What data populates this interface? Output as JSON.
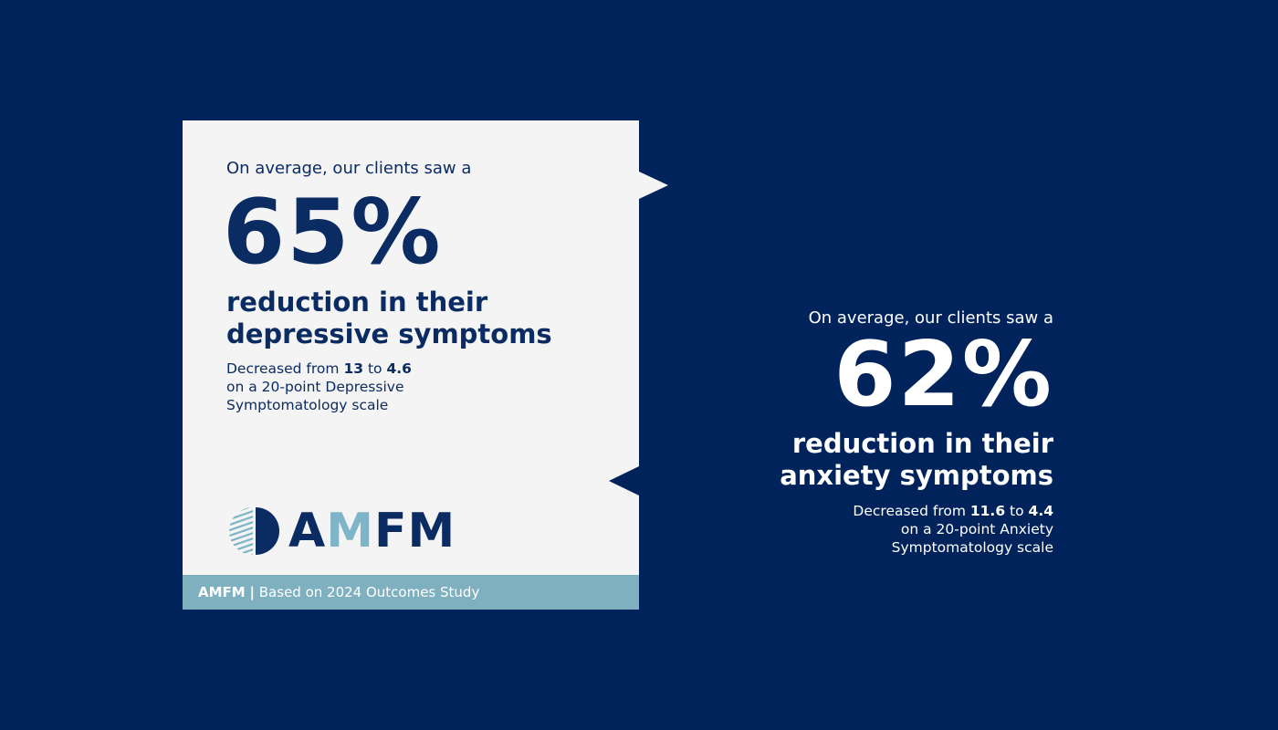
{
  "colors": {
    "background": "#00235c",
    "card": "#f4f4f4",
    "navy": "#0b2b63",
    "accent": "#7fb0c0"
  },
  "depression": {
    "intro": "On average, our clients saw a",
    "percent": "65%",
    "headline_1": "reduction in their",
    "headline_2": "depressive symptoms",
    "detail_prefix": "Decreased from ",
    "from": "13",
    "to_word": " to ",
    "to": "4.6",
    "detail_2": "on a 20-point Depressive",
    "detail_3": "Symptomatology scale"
  },
  "logo": {
    "text_a": "A",
    "text_m": "M",
    "text_fm": "FM"
  },
  "footer": {
    "brand": "AMFM",
    "separator": "|",
    "text": "Based on 2024 Outcomes Study"
  },
  "anxiety": {
    "intro": "On average, our clients saw a",
    "percent": "62%",
    "headline_1": "reduction in their",
    "headline_2": "anxiety symptoms",
    "detail_prefix": "Decreased from ",
    "from": "11.6",
    "to_word": " to ",
    "to": "4.4",
    "detail_2": "on a 20-point Anxiety",
    "detail_3": "Symptomatology scale"
  }
}
